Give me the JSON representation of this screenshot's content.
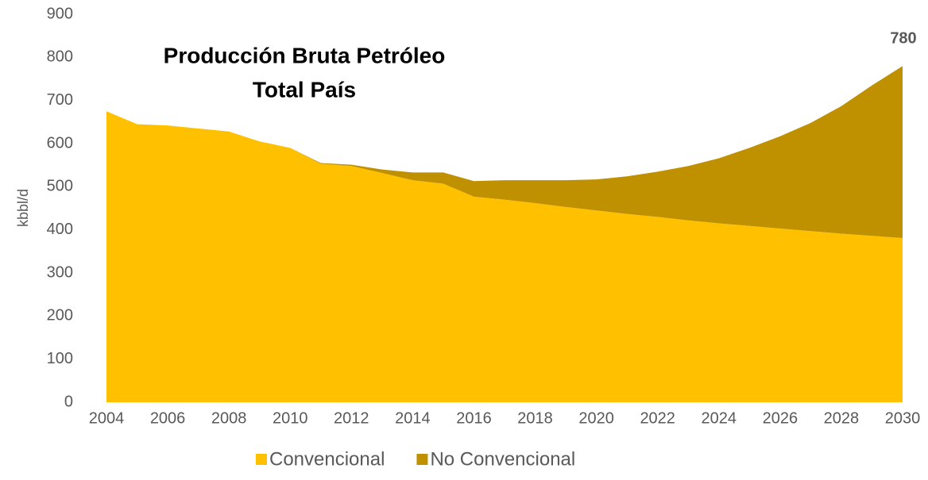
{
  "chart_data": {
    "type": "stacked_area",
    "title": [
      "Producción Bruta Petróleo",
      "Total País"
    ],
    "y_label": "kbbl/d",
    "annotation": "780",
    "x": [
      2004,
      2005,
      2006,
      2007,
      2008,
      2009,
      2010,
      2011,
      2012,
      2013,
      2014,
      2015,
      2016,
      2017,
      2018,
      2019,
      2020,
      2021,
      2022,
      2023,
      2024,
      2025,
      2026,
      2027,
      2028,
      2029,
      2030
    ],
    "series": [
      {
        "name": "Convencional",
        "color": "#FFC000",
        "values": [
          675,
          645,
          642,
          635,
          628,
          605,
          590,
          553,
          548,
          532,
          515,
          507,
          477,
          470,
          462,
          453,
          445,
          437,
          430,
          422,
          415,
          409,
          403,
          397,
          391,
          386,
          381
        ]
      },
      {
        "name": "No Convencional",
        "color": "#BF9000",
        "values": [
          0,
          0,
          0,
          0,
          0,
          0,
          0,
          2,
          3,
          8,
          18,
          26,
          36,
          45,
          53,
          62,
          72,
          87,
          105,
          126,
          151,
          181,
          214,
          251,
          296,
          349,
          399
        ]
      }
    ],
    "xlim": [
      2004,
      2030
    ],
    "xticks": [
      2004,
      2006,
      2008,
      2010,
      2012,
      2014,
      2016,
      2018,
      2020,
      2022,
      2024,
      2026,
      2028,
      2030
    ],
    "ylim": [
      0,
      900
    ],
    "yticks": [
      0,
      100,
      200,
      300,
      400,
      500,
      600,
      700,
      800,
      900
    ],
    "grid": false,
    "legend": "bottom"
  }
}
